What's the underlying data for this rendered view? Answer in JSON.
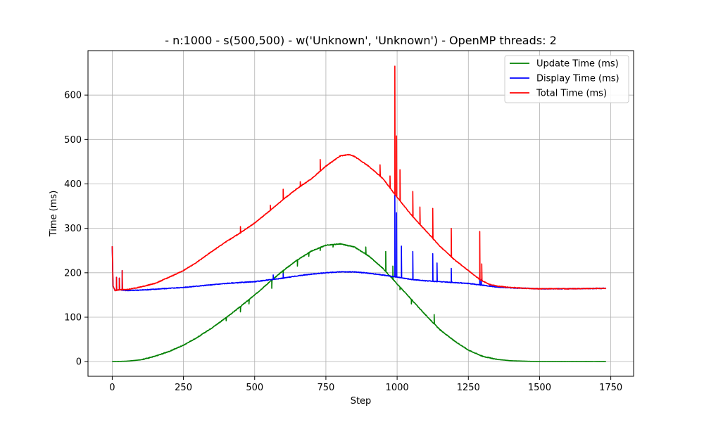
{
  "chart_data": {
    "type": "line",
    "title": "- n:1000 - s(500,500) - w('Unknown', 'Unknown') - OpenMP threads: 2",
    "xlabel": "Step",
    "ylabel": "Time (ms)",
    "xlim": [
      -85,
      1830
    ],
    "ylim": [
      -33,
      700
    ],
    "xticks": [
      0,
      250,
      500,
      750,
      1000,
      1250,
      1500,
      1750
    ],
    "yticks": [
      0,
      100,
      200,
      300,
      400,
      500,
      600
    ],
    "grid": true,
    "legend_position": "top-right",
    "series": [
      {
        "name": "Update Time (ms)",
        "color": "#008000",
        "points": [
          [
            0,
            0
          ],
          [
            50,
            1
          ],
          [
            100,
            4
          ],
          [
            150,
            12
          ],
          [
            200,
            23
          ],
          [
            250,
            37
          ],
          [
            300,
            55
          ],
          [
            350,
            76
          ],
          [
            400,
            99
          ],
          [
            450,
            124
          ],
          [
            500,
            150
          ],
          [
            550,
            178
          ],
          [
            600,
            205
          ],
          [
            650,
            229
          ],
          [
            700,
            249
          ],
          [
            750,
            262
          ],
          [
            800,
            265
          ],
          [
            850,
            258
          ],
          [
            900,
            238
          ],
          [
            950,
            210
          ],
          [
            1000,
            175
          ],
          [
            1050,
            140
          ],
          [
            1100,
            105
          ],
          [
            1150,
            72
          ],
          [
            1200,
            47
          ],
          [
            1250,
            26
          ],
          [
            1300,
            12
          ],
          [
            1350,
            5
          ],
          [
            1400,
            2
          ],
          [
            1500,
            0
          ],
          [
            1600,
            0
          ],
          [
            1733,
            0
          ]
        ],
        "spikes": [
          [
            400,
            92
          ],
          [
            450,
            112
          ],
          [
            480,
            130
          ],
          [
            560,
            165
          ],
          [
            600,
            197
          ],
          [
            650,
            215
          ],
          [
            690,
            237
          ],
          [
            730,
            250
          ],
          [
            775,
            258
          ],
          [
            890,
            258
          ],
          [
            960,
            248
          ],
          [
            985,
            215
          ],
          [
            1010,
            162
          ],
          [
            1050,
            130
          ],
          [
            1130,
            106
          ]
        ]
      },
      {
        "name": "Display Time (ms)",
        "color": "#0000ff",
        "points": [
          [
            0,
            260
          ],
          [
            3,
            170
          ],
          [
            10,
            160
          ],
          [
            25,
            162
          ],
          [
            50,
            160
          ],
          [
            100,
            161
          ],
          [
            150,
            163
          ],
          [
            200,
            165
          ],
          [
            250,
            167
          ],
          [
            300,
            170
          ],
          [
            350,
            173
          ],
          [
            400,
            176
          ],
          [
            450,
            178
          ],
          [
            500,
            180
          ],
          [
            550,
            184
          ],
          [
            600,
            188
          ],
          [
            650,
            193
          ],
          [
            700,
            197
          ],
          [
            750,
            200
          ],
          [
            800,
            202
          ],
          [
            850,
            202
          ],
          [
            900,
            199
          ],
          [
            950,
            195
          ],
          [
            1000,
            190
          ],
          [
            1050,
            185
          ],
          [
            1100,
            182
          ],
          [
            1150,
            180
          ],
          [
            1200,
            178
          ],
          [
            1250,
            176
          ],
          [
            1300,
            172
          ],
          [
            1350,
            168
          ],
          [
            1400,
            166
          ],
          [
            1450,
            165
          ],
          [
            1500,
            164
          ],
          [
            1600,
            164
          ],
          [
            1733,
            165
          ]
        ],
        "spikes": [
          [
            15,
            190
          ],
          [
            25,
            188
          ],
          [
            35,
            205
          ],
          [
            565,
            195
          ],
          [
            600,
            198
          ],
          [
            992,
            375
          ],
          [
            998,
            335
          ],
          [
            1015,
            260
          ],
          [
            1055,
            248
          ],
          [
            1125,
            243
          ],
          [
            1140,
            222
          ],
          [
            1190,
            210
          ],
          [
            1290,
            195
          ],
          [
            1295,
            185
          ]
        ]
      },
      {
        "name": "Total Time (ms)",
        "color": "#ff0000",
        "points": [
          [
            0,
            260
          ],
          [
            3,
            170
          ],
          [
            10,
            160
          ],
          [
            25,
            162
          ],
          [
            50,
            162
          ],
          [
            100,
            168
          ],
          [
            150,
            176
          ],
          [
            200,
            190
          ],
          [
            250,
            205
          ],
          [
            300,
            225
          ],
          [
            350,
            248
          ],
          [
            400,
            270
          ],
          [
            450,
            290
          ],
          [
            500,
            312
          ],
          [
            550,
            338
          ],
          [
            600,
            365
          ],
          [
            650,
            390
          ],
          [
            700,
            412
          ],
          [
            750,
            440
          ],
          [
            800,
            463
          ],
          [
            830,
            466
          ],
          [
            850,
            462
          ],
          [
            900,
            440
          ],
          [
            950,
            412
          ],
          [
            1000,
            370
          ],
          [
            1050,
            330
          ],
          [
            1100,
            295
          ],
          [
            1150,
            260
          ],
          [
            1200,
            230
          ],
          [
            1250,
            205
          ],
          [
            1290,
            185
          ],
          [
            1320,
            175
          ],
          [
            1350,
            170
          ],
          [
            1400,
            167
          ],
          [
            1450,
            165
          ],
          [
            1500,
            164
          ],
          [
            1600,
            164
          ],
          [
            1733,
            165
          ]
        ],
        "spikes": [
          [
            15,
            190
          ],
          [
            25,
            188
          ],
          [
            35,
            205
          ],
          [
            450,
            304
          ],
          [
            555,
            352
          ],
          [
            600,
            388
          ],
          [
            660,
            405
          ],
          [
            730,
            455
          ],
          [
            940,
            443
          ],
          [
            975,
            418
          ],
          [
            992,
            665
          ],
          [
            998,
            508
          ],
          [
            1010,
            432
          ],
          [
            1055,
            383
          ],
          [
            1080,
            348
          ],
          [
            1125,
            345
          ],
          [
            1190,
            300
          ],
          [
            1290,
            293
          ],
          [
            1297,
            220
          ]
        ]
      }
    ]
  }
}
